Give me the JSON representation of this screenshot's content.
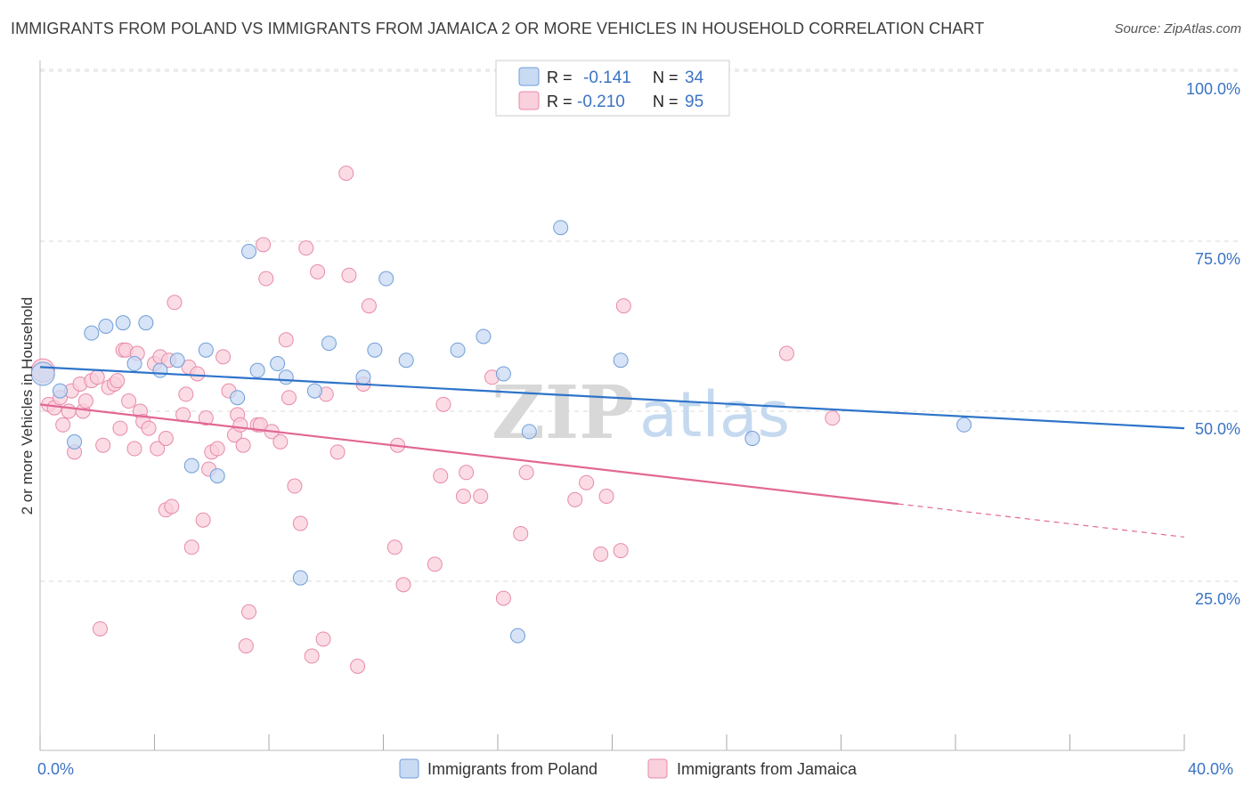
{
  "title": "IMMIGRANTS FROM POLAND VS IMMIGRANTS FROM JAMAICA 2 OR MORE VEHICLES IN HOUSEHOLD CORRELATION CHART",
  "source": "Source: ZipAtlas.com",
  "watermark": {
    "zip": "ZIP",
    "atlas": "atlas"
  },
  "colors": {
    "poland_fill": "#c9daf3",
    "poland_stroke": "#6f9ed8",
    "poland_line": "#2e74c9",
    "jamaica_fill": "#f9d0dc",
    "jamaica_stroke": "#e88aa8",
    "jamaica_line": "#e26794",
    "grid": "#d8d8d8",
    "axis_text": "#3b73c4"
  },
  "legend": {
    "row1": {
      "r_label": "R =",
      "r_value": "-0.141",
      "n_label": "N =",
      "n_value": "34"
    },
    "row2": {
      "r_label": "R =",
      "r_value": "-0.210",
      "n_label": "N =",
      "n_value": "95"
    }
  },
  "bottom_legend": {
    "poland": "Immigrants from Poland",
    "jamaica": "Immigrants from Jamaica"
  },
  "chart_data": {
    "type": "scatter",
    "title": "IMMIGRANTS FROM POLAND VS IMMIGRANTS FROM JAMAICA 2 OR MORE VEHICLES IN HOUSEHOLD CORRELATION CHART",
    "xlabel": "",
    "ylabel": "2 or more Vehicles in Household",
    "xlim": [
      0,
      40
    ],
    "ylim": [
      0,
      100
    ],
    "x_ticks": [
      "0.0%",
      "40.0%"
    ],
    "y_ticks": [
      "25.0%",
      "50.0%",
      "75.0%",
      "100.0%"
    ],
    "y_tick_values": [
      25,
      50,
      75,
      100
    ],
    "series": [
      {
        "name": "Immigrants from Poland",
        "r": -0.141,
        "n": 34,
        "trend": {
          "x0": 0,
          "y0": 56.5,
          "x1": 40,
          "y1": 47.5,
          "solid_until": 40
        },
        "points": [
          [
            0.1,
            55.5
          ],
          [
            0.7,
            53
          ],
          [
            1.2,
            45.5
          ],
          [
            1.8,
            61.5
          ],
          [
            2.3,
            62.5
          ],
          [
            2.9,
            63
          ],
          [
            3.3,
            57
          ],
          [
            3.7,
            63
          ],
          [
            4.2,
            56
          ],
          [
            4.8,
            57.5
          ],
          [
            5.3,
            42
          ],
          [
            5.8,
            59
          ],
          [
            6.2,
            40.5
          ],
          [
            6.9,
            52
          ],
          [
            7.3,
            73.5
          ],
          [
            7.6,
            56
          ],
          [
            8.3,
            57
          ],
          [
            8.6,
            55
          ],
          [
            9.1,
            25.5
          ],
          [
            9.6,
            53
          ],
          [
            10.1,
            60
          ],
          [
            11.3,
            55
          ],
          [
            11.7,
            59
          ],
          [
            12.1,
            69.5
          ],
          [
            12.8,
            57.5
          ],
          [
            14.6,
            59
          ],
          [
            15.5,
            61
          ],
          [
            16.2,
            55.5
          ],
          [
            16.7,
            17
          ],
          [
            17.1,
            47
          ],
          [
            18.2,
            77
          ],
          [
            20.3,
            57.5
          ],
          [
            24.9,
            46
          ],
          [
            32.3,
            48
          ]
        ]
      },
      {
        "name": "Immigrants from Jamaica",
        "r": -0.21,
        "n": 95,
        "trend": {
          "x0": 0,
          "y0": 51,
          "x1": 40,
          "y1": 31.5,
          "solid_until": 30
        },
        "points": [
          [
            0.1,
            56
          ],
          [
            0.3,
            51
          ],
          [
            0.5,
            50.5
          ],
          [
            0.7,
            52
          ],
          [
            0.8,
            48
          ],
          [
            1.0,
            50
          ],
          [
            1.1,
            53
          ],
          [
            1.2,
            44
          ],
          [
            1.4,
            54
          ],
          [
            1.5,
            50
          ],
          [
            1.6,
            51.5
          ],
          [
            1.8,
            54.5
          ],
          [
            2.0,
            55
          ],
          [
            2.1,
            18
          ],
          [
            2.2,
            45
          ],
          [
            2.4,
            53.5
          ],
          [
            2.6,
            54
          ],
          [
            2.7,
            54.5
          ],
          [
            2.8,
            47.5
          ],
          [
            2.9,
            59
          ],
          [
            3.0,
            59
          ],
          [
            3.1,
            51.5
          ],
          [
            3.3,
            44.5
          ],
          [
            3.4,
            58.5
          ],
          [
            3.5,
            50
          ],
          [
            3.6,
            48.5
          ],
          [
            3.8,
            47.5
          ],
          [
            4.0,
            57
          ],
          [
            4.1,
            44.5
          ],
          [
            4.2,
            58
          ],
          [
            4.4,
            46
          ],
          [
            4.4,
            35.5
          ],
          [
            4.5,
            57.5
          ],
          [
            4.6,
            36
          ],
          [
            4.7,
            66
          ],
          [
            5.0,
            49.5
          ],
          [
            5.1,
            52.5
          ],
          [
            5.2,
            56.5
          ],
          [
            5.3,
            30
          ],
          [
            5.5,
            55.5
          ],
          [
            5.7,
            34
          ],
          [
            5.8,
            49
          ],
          [
            5.9,
            41.5
          ],
          [
            6.0,
            44
          ],
          [
            6.2,
            44.5
          ],
          [
            6.4,
            58
          ],
          [
            6.6,
            53
          ],
          [
            6.8,
            46.5
          ],
          [
            6.9,
            49.5
          ],
          [
            7.0,
            48
          ],
          [
            7.1,
            45
          ],
          [
            7.3,
            20.5
          ],
          [
            7.2,
            15.5
          ],
          [
            7.6,
            48
          ],
          [
            7.7,
            48
          ],
          [
            7.8,
            74.5
          ],
          [
            7.9,
            69.5
          ],
          [
            8.1,
            47
          ],
          [
            8.4,
            45.5
          ],
          [
            8.6,
            60.5
          ],
          [
            8.7,
            52
          ],
          [
            8.9,
            39
          ],
          [
            9.1,
            33.5
          ],
          [
            9.3,
            74
          ],
          [
            9.5,
            14
          ],
          [
            9.7,
            70.5
          ],
          [
            9.9,
            16.5
          ],
          [
            10.0,
            52.5
          ],
          [
            10.4,
            44
          ],
          [
            10.7,
            85
          ],
          [
            10.8,
            70
          ],
          [
            11.1,
            12.5
          ],
          [
            11.3,
            54
          ],
          [
            11.5,
            65.5
          ],
          [
            12.4,
            30
          ],
          [
            12.7,
            24.5
          ],
          [
            13.8,
            27.5
          ],
          [
            14.0,
            40.5
          ],
          [
            14.1,
            51
          ],
          [
            14.8,
            37.5
          ],
          [
            14.9,
            41
          ],
          [
            15.4,
            37.5
          ],
          [
            15.8,
            55
          ],
          [
            16.2,
            22.5
          ],
          [
            16.8,
            32
          ],
          [
            17.0,
            41
          ],
          [
            18.7,
            37
          ],
          [
            19.1,
            39.5
          ],
          [
            19.6,
            29
          ],
          [
            19.8,
            37.5
          ],
          [
            20.3,
            29.5
          ],
          [
            20.4,
            65.5
          ],
          [
            26.1,
            58.5
          ],
          [
            27.7,
            49
          ],
          [
            12.5,
            45
          ]
        ]
      }
    ]
  }
}
